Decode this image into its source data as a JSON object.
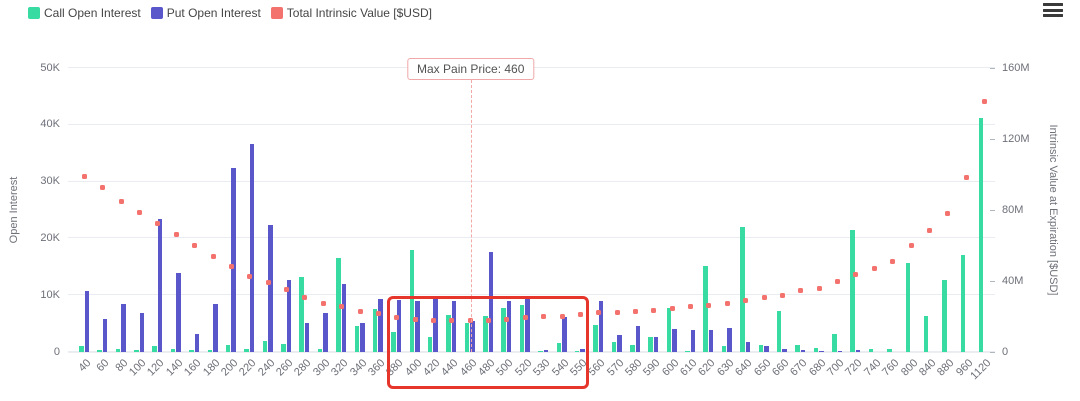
{
  "menu": {
    "icon": "hamburger-menu-icon"
  },
  "chart_data": {
    "type": "bar",
    "title": "",
    "categories": [
      "40",
      "60",
      "80",
      "100",
      "120",
      "140",
      "160",
      "180",
      "200",
      "220",
      "240",
      "260",
      "280",
      "300",
      "320",
      "340",
      "360",
      "380",
      "400",
      "420",
      "440",
      "460",
      "480",
      "500",
      "520",
      "530",
      "540",
      "550",
      "560",
      "570",
      "580",
      "590",
      "600",
      "610",
      "620",
      "630",
      "640",
      "650",
      "660",
      "670",
      "680",
      "700",
      "720",
      "740",
      "760",
      "800",
      "840",
      "880",
      "960",
      "1120"
    ],
    "series": [
      {
        "name": "Call Open Interest",
        "type": "bar",
        "axis": "left",
        "color": "#38dba2",
        "values": [
          1100,
          300,
          500,
          300,
          1000,
          500,
          300,
          300,
          1200,
          600,
          2000,
          1500,
          13200,
          500,
          16600,
          4500,
          7600,
          3600,
          18000,
          2600,
          6500,
          5200,
          6300,
          7700,
          8300,
          100,
          1600,
          100,
          4800,
          1800,
          1200,
          2600,
          7700,
          200,
          15100,
          1000,
          22100,
          1200,
          7300,
          1200,
          800,
          3200,
          21500,
          500,
          600,
          15600,
          6300,
          12700,
          17100,
          41200
        ]
      },
      {
        "name": "Put Open Interest",
        "type": "bar",
        "axis": "left",
        "color": "#5a57ca",
        "values": [
          10800,
          5800,
          8500,
          6800,
          23500,
          14000,
          3200,
          8400,
          32400,
          36600,
          22300,
          12700,
          5200,
          6800,
          11900,
          5200,
          9400,
          9100,
          9000,
          9800,
          9000,
          5500,
          17700,
          9000,
          9300,
          400,
          6100,
          500,
          9000,
          3000,
          4500,
          2700,
          4000,
          3900,
          3900,
          4200,
          1800,
          1100,
          500,
          300,
          200,
          100,
          400,
          0,
          0,
          0,
          0,
          0,
          0,
          0
        ]
      },
      {
        "name": "Total Intrinsic Value [$USD]",
        "type": "scatter",
        "axis": "right",
        "color": "#f4726e",
        "values_musd": [
          99,
          92.5,
          85,
          78.5,
          72.5,
          66,
          60,
          54,
          48,
          42.5,
          39,
          35,
          31,
          27.5,
          25.5,
          23,
          21.5,
          19.5,
          18.5,
          18,
          17.8,
          17.5,
          18,
          18.4,
          19.5,
          20.3,
          20.3,
          21.4,
          22.1,
          22.5,
          23,
          23.5,
          24.5,
          25.5,
          26.3,
          27.5,
          29,
          30.8,
          32,
          34.5,
          36,
          39.5,
          43.5,
          47,
          51,
          60,
          68.5,
          78,
          98.5,
          141
        ]
      }
    ],
    "left_axis": {
      "title": "Open Interest",
      "ticks": [
        "0",
        "10K",
        "20K",
        "30K",
        "40K",
        "50K"
      ],
      "max": 50000
    },
    "right_axis": {
      "title": "Intrinsic Value at Expiration [$USD]",
      "ticks": [
        "0",
        "40M",
        "80M",
        "120M",
        "160M"
      ],
      "max_musd": 160
    },
    "annotations": {
      "max_pain": {
        "label": "Max Pain Price: 460",
        "strike": "460"
      },
      "highlight_box": {
        "from_strike": "380",
        "to_strike": "550"
      }
    },
    "legend_position": "top-left",
    "grid": true
  }
}
